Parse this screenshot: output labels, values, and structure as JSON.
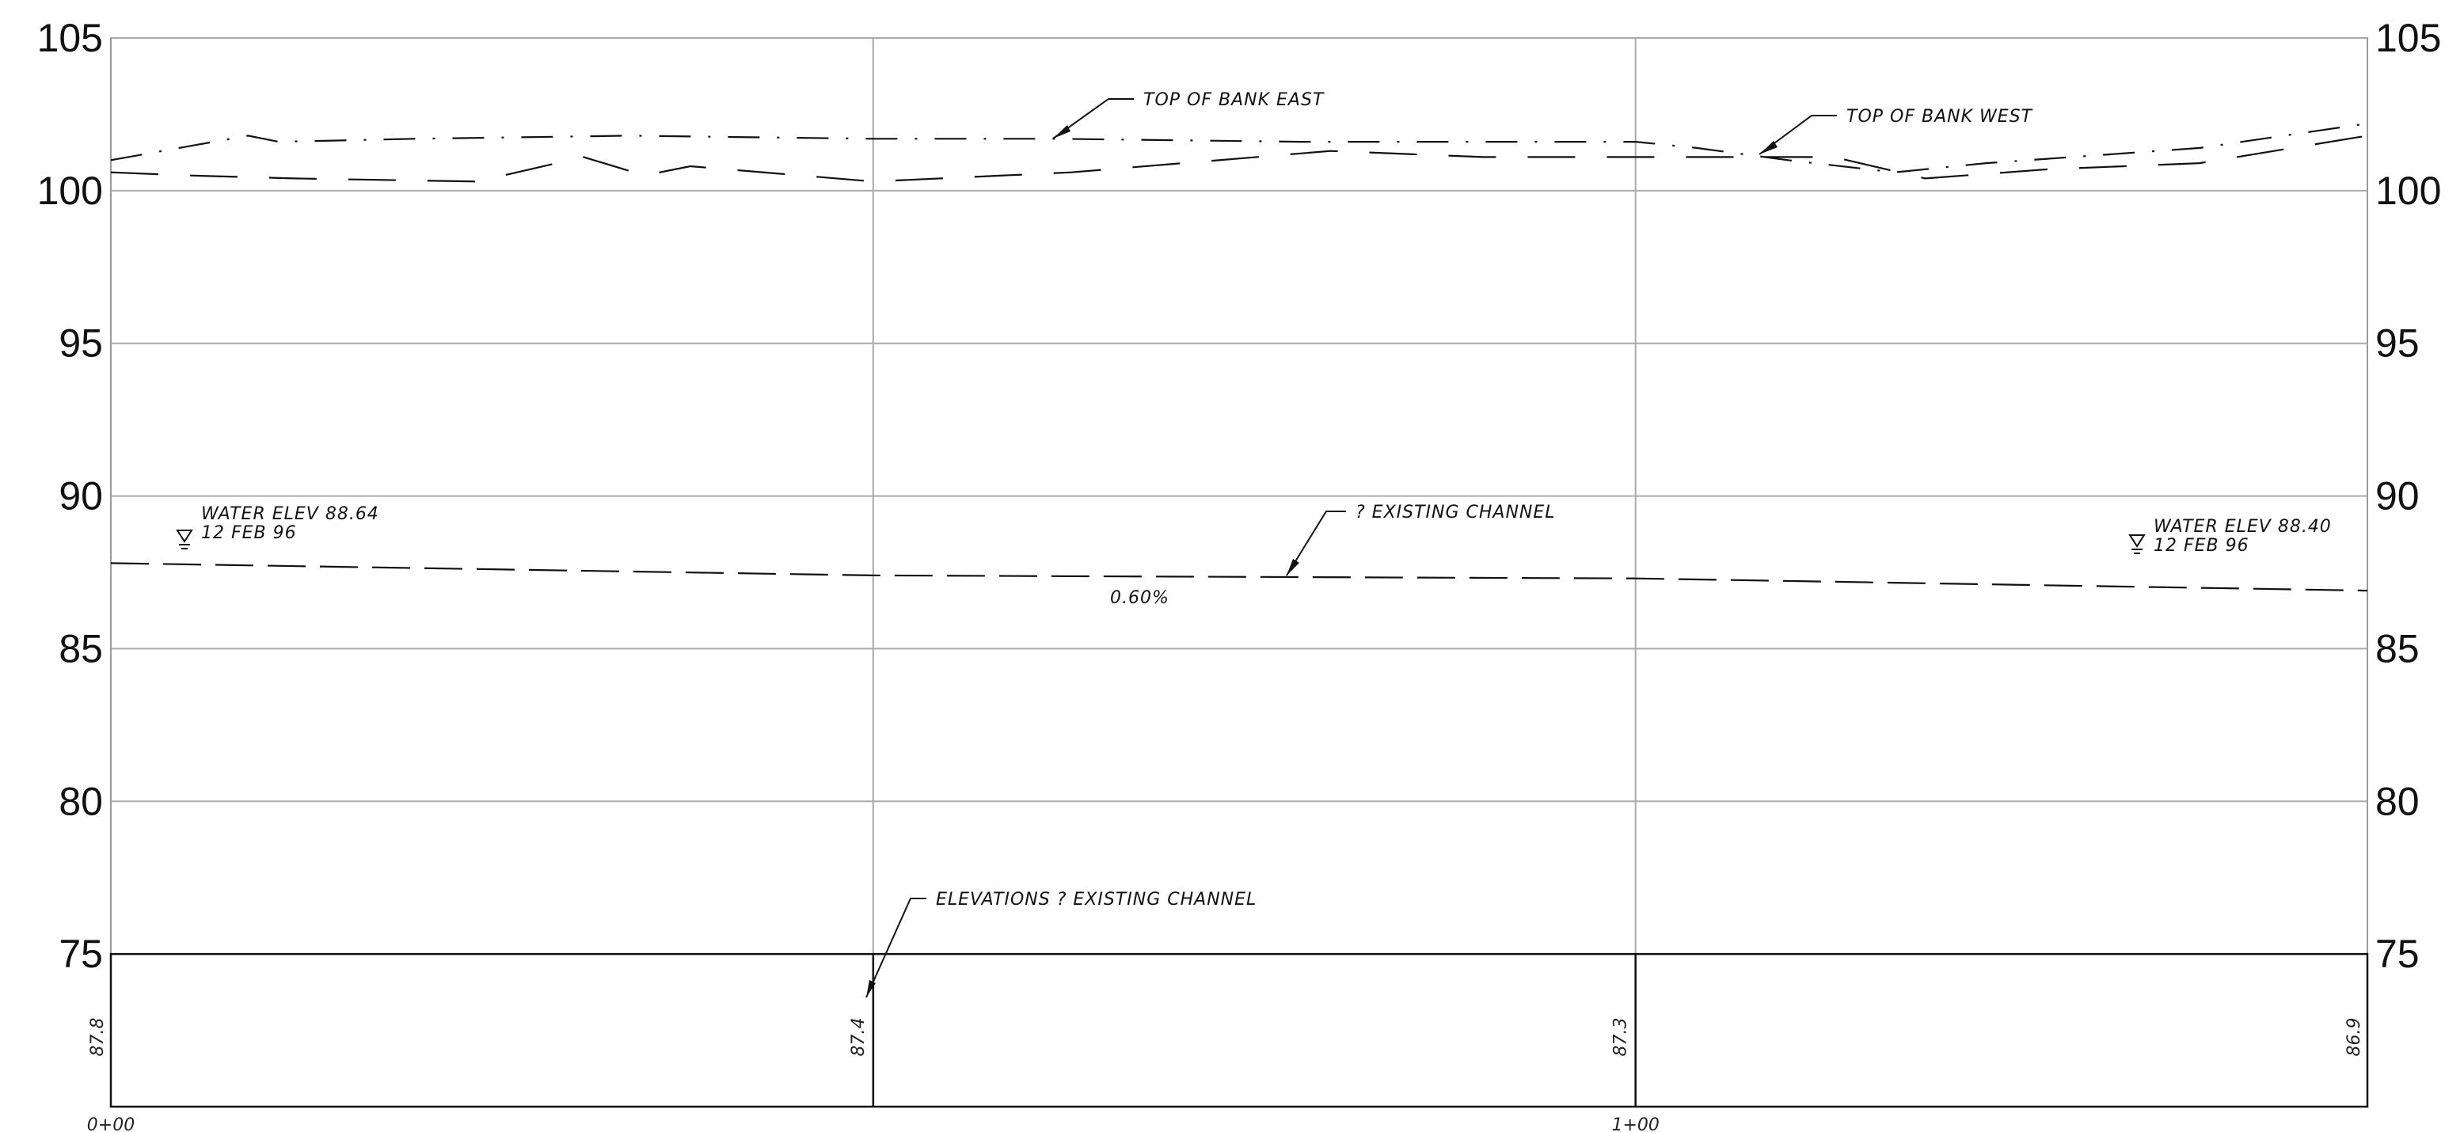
{
  "chart_data": {
    "type": "line",
    "title": "",
    "xlabel": "",
    "ylabel": "",
    "xlim": [
      0,
      148
    ],
    "ylim": [
      70,
      105
    ],
    "grid": true,
    "y_ticks": [
      "75",
      "80",
      "85",
      "90",
      "95",
      "100",
      "105"
    ],
    "x_gridlines": [
      50,
      100
    ],
    "station_labels": [
      {
        "x": 0,
        "label": "0+00"
      },
      {
        "x": 100,
        "label": "1+00"
      }
    ],
    "series": [
      {
        "name": "TOP OF BANK EAST",
        "style": "dash-dot",
        "x": [
          0,
          9,
          11,
          20,
          34,
          50,
          62,
          78,
          90,
          100,
          104,
          110,
          117,
          123,
          137,
          148
        ],
        "y": [
          101.0,
          101.8,
          101.6,
          101.7,
          101.8,
          101.7,
          101.7,
          101.6,
          101.6,
          101.6,
          101.4,
          101.0,
          100.6,
          100.9,
          101.4,
          102.2
        ]
      },
      {
        "name": "TOP OF BANK WEST",
        "style": "long-dash",
        "x": [
          0,
          5,
          12,
          24,
          31,
          35,
          38,
          50,
          63,
          80,
          90,
          100,
          105,
          113,
          119,
          127,
          137,
          148
        ],
        "y": [
          100.6,
          100.5,
          100.4,
          100.3,
          101.1,
          100.5,
          100.8,
          100.3,
          100.6,
          101.3,
          101.1,
          101.1,
          101.1,
          101.1,
          100.4,
          100.7,
          100.9,
          101.8
        ]
      },
      {
        "name": "? EXISTING CHANNEL",
        "style": "dashed",
        "x": [
          0,
          50,
          100,
          148
        ],
        "y": [
          87.8,
          87.4,
          87.3,
          86.9
        ]
      }
    ],
    "elevations_row": [
      {
        "x": 0,
        "value": "87.8"
      },
      {
        "x": 50,
        "value": "87.4"
      },
      {
        "x": 100,
        "value": "87.3"
      },
      {
        "x": 148,
        "value": "86.9"
      }
    ],
    "annotations": {
      "top_bank_east": "TOP OF BANK EAST",
      "top_bank_west": "TOP OF BANK WEST",
      "existing_channel": "? EXISTING CHANNEL",
      "slope": "0.60%",
      "elevations": "ELEVATIONS ? EXISTING CHANNEL",
      "water_left_line1": "WATER ELEV 88.64",
      "water_left_line2": "12 FEB 96",
      "water_right_line1": "WATER ELEV 88.40",
      "water_right_line2": "12 FEB 96"
    },
    "water_markers": [
      {
        "x": 5,
        "elev": 88.64
      },
      {
        "x": 133,
        "elev": 88.4
      }
    ]
  }
}
